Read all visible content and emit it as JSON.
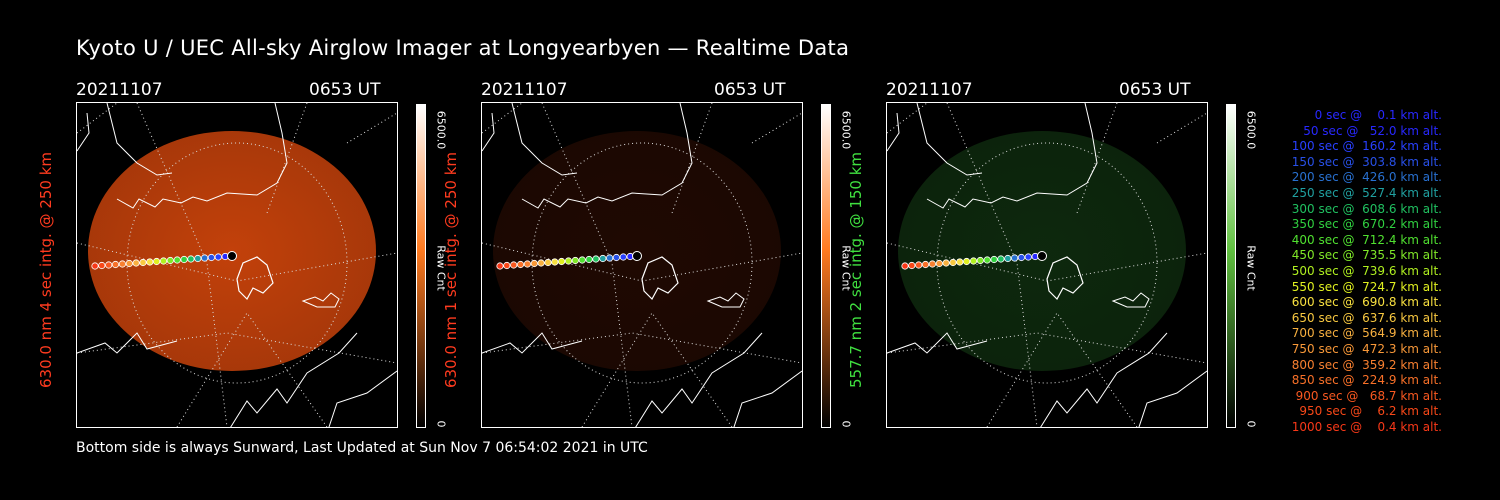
{
  "title": "Kyoto U / UEC All-sky Airglow Imager at Longyearbyen — Realtime Data",
  "footer": "Bottom side is always Sunward, Last Updated at Sun Nov  7 06:54:02 2021 in UTC",
  "panels": [
    {
      "date": "20211107",
      "time": "0653 UT",
      "ylabel": "630.0 nm 4 sec intg. @ 250 km",
      "label_color": "#ff3b1f",
      "colorbar_max": "6500.0",
      "colorbar_min": "0",
      "colorbar_unit": "Raw Cnt",
      "colorbar_top": "#ffffff",
      "colorbar_mid": "#ff7a20",
      "image_color": "#d8480c",
      "image_brightness": 0.9
    },
    {
      "date": "20211107",
      "time": "0653 UT",
      "ylabel": "630.0 nm 1 sec intg. @ 250 km",
      "label_color": "#ff3b1f",
      "colorbar_max": "6500.0",
      "colorbar_min": "0",
      "colorbar_unit": "Raw Cnt",
      "colorbar_top": "#ffffff",
      "colorbar_mid": "#ff7a20",
      "image_color": "#5a1a06",
      "image_brightness": 0.35
    },
    {
      "date": "20211107",
      "time": "0653 UT",
      "ylabel": "557.7 nm 2 sec intg. @ 150 km",
      "label_color": "#40e040",
      "colorbar_max": "6500.0",
      "colorbar_min": "0",
      "colorbar_unit": "Raw Cnt",
      "colorbar_top": "#ffffff",
      "colorbar_mid": "#60c040",
      "image_color": "#1e5a1e",
      "image_brightness": 0.45
    }
  ],
  "legend": [
    {
      "text": "   0 sec @    0.1 km alt.",
      "color": "#2828ff"
    },
    {
      "text": "  50 sec @   52.0 km alt.",
      "color": "#2828ff"
    },
    {
      "text": " 100 sec @  160.2 km alt.",
      "color": "#2840ff"
    },
    {
      "text": " 150 sec @  303.8 km alt.",
      "color": "#2850e8"
    },
    {
      "text": " 200 sec @  426.0 km alt.",
      "color": "#2870d0"
    },
    {
      "text": " 250 sec @  527.4 km alt.",
      "color": "#20a0a0"
    },
    {
      "text": " 300 sec @  608.6 km alt.",
      "color": "#20c060"
    },
    {
      "text": " 350 sec @  670.2 km alt.",
      "color": "#30d040"
    },
    {
      "text": " 400 sec @  712.4 km alt.",
      "color": "#50e030"
    },
    {
      "text": " 450 sec @  735.5 km alt.",
      "color": "#80e828"
    },
    {
      "text": " 500 sec @  739.6 km alt.",
      "color": "#b0f020"
    },
    {
      "text": " 550 sec @  724.7 km alt.",
      "color": "#e0f020"
    },
    {
      "text": " 600 sec @  690.8 km alt.",
      "color": "#f8e040"
    },
    {
      "text": " 650 sec @  637.6 km alt.",
      "color": "#f8c840"
    },
    {
      "text": " 700 sec @  564.9 km alt.",
      "color": "#f8b040"
    },
    {
      "text": " 750 sec @  472.3 km alt.",
      "color": "#f89838"
    },
    {
      "text": " 800 sec @  359.2 km alt.",
      "color": "#f88030"
    },
    {
      "text": " 850 sec @  224.9 km alt.",
      "color": "#f87028"
    },
    {
      "text": " 900 sec @   68.7 km alt.",
      "color": "#f85820"
    },
    {
      "text": " 950 sec @    6.2 km alt.",
      "color": "#f84818"
    },
    {
      "text": "1000 sec @    0.4 km alt.",
      "color": "#f83818"
    }
  ]
}
